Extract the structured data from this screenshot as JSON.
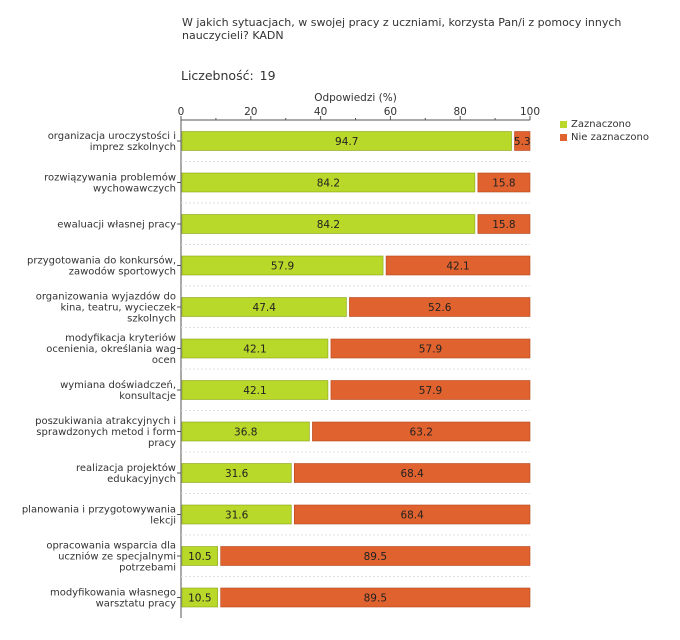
{
  "title": "W jakich sytuacjach, w swojej pracy z uczniami, korzysta Pan/i z pomocy innych nauczycieli? KADN",
  "count_label": "Liczebność:",
  "count_value": "19",
  "chart_data": {
    "type": "bar",
    "orientation": "horizontal",
    "stacked": true,
    "xlabel": "Odpowiedzi (%)",
    "xlim": [
      0,
      100
    ],
    "ticks": [
      0,
      20,
      40,
      60,
      80,
      100
    ],
    "categories": [
      [
        "organizacja uroczystości i",
        "imprez szkolnych"
      ],
      [
        "rozwiązywania problemów",
        "wychowawczych"
      ],
      [
        "ewaluacji własnej pracy"
      ],
      [
        "przygotowania do konkursów,",
        "zawodów sportowych"
      ],
      [
        "organizowania wyjazdów do",
        "kina, teatru, wycieczek",
        "szkolnych"
      ],
      [
        "modyfikacja kryteriów",
        "ocenienia, określania wag",
        "ocen"
      ],
      [
        "wymiana doświadczeń,",
        "konsultacje"
      ],
      [
        "poszukiwania atrakcyjnych i",
        "sprawdzonych metod i form",
        "pracy"
      ],
      [
        "realizacja projektów",
        "edukacyjnych"
      ],
      [
        "planowania i przygotowywania",
        "lekcji"
      ],
      [
        "opracowania wsparcia dla",
        "uczniów ze specjalnymi",
        "potrzebami"
      ],
      [
        "modyfikowania własnego",
        "warsztatu pracy"
      ]
    ],
    "series": [
      {
        "name": "Zaznaczono",
        "color": "#b8d82a",
        "values": [
          94.7,
          84.2,
          84.2,
          57.9,
          47.4,
          42.1,
          42.1,
          36.8,
          31.6,
          31.6,
          10.5,
          10.5
        ],
        "labels": [
          "94.7",
          "84.2",
          "84.2",
          "57.9",
          "47.4",
          "42.1",
          "42.1",
          "36.8",
          "31.6",
          "31.6",
          "10.5",
          "10.5"
        ]
      },
      {
        "name": "Nie zaznaczono",
        "color": "#e0622e",
        "values": [
          5.3,
          15.8,
          15.8,
          42.1,
          52.6,
          57.9,
          57.9,
          63.2,
          68.4,
          68.4,
          89.5,
          89.5
        ],
        "labels": [
          "5.3",
          "15.8",
          "15.8",
          "42.1",
          "52.6",
          "57.9",
          "57.9",
          "63.2",
          "68.4",
          "68.4",
          "89.5",
          "89.5"
        ]
      }
    ]
  }
}
